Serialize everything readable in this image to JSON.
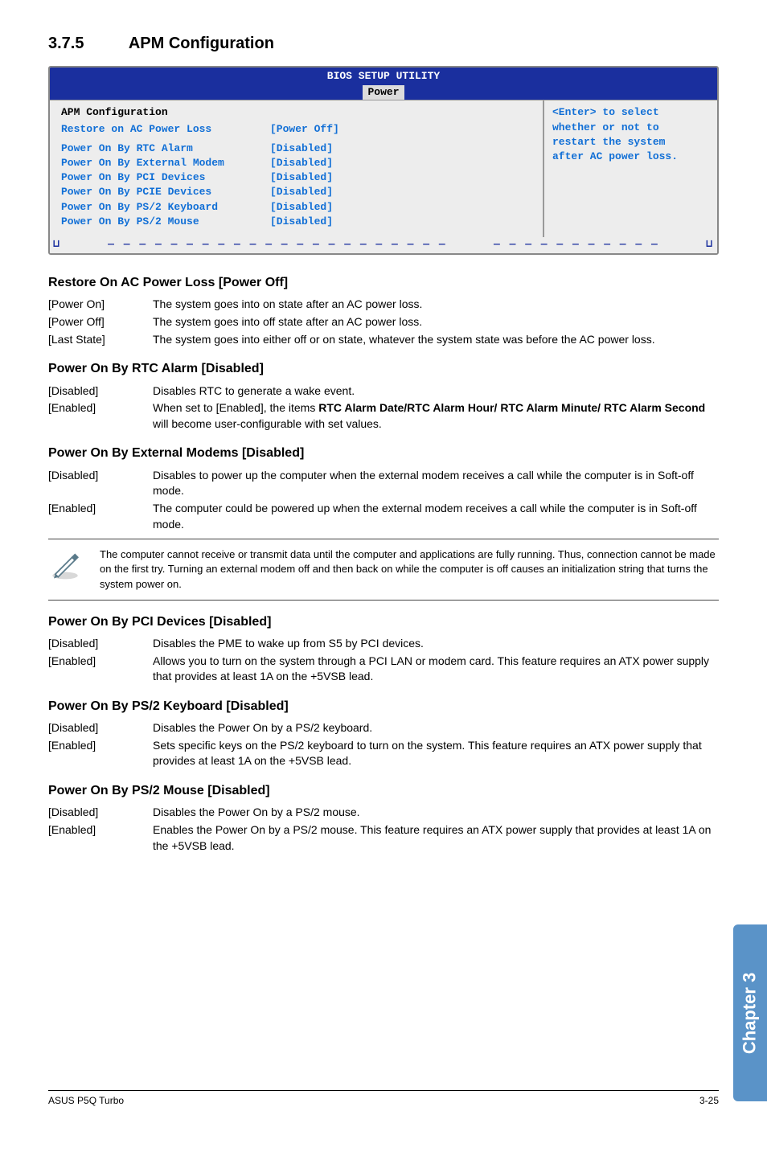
{
  "section": {
    "number": "3.7.5",
    "title": "APM Configuration"
  },
  "bios": {
    "header_line1": "BIOS SETUP UTILITY",
    "header_tab": "Power",
    "left_header": "APM Configuration",
    "rows": [
      {
        "label": "Restore on AC Power Loss",
        "value": "[Power Off]"
      },
      {
        "label": "Power On By RTC Alarm",
        "value": "[Disabled]"
      },
      {
        "label": "Power On By External Modem",
        "value": "[Disabled]"
      },
      {
        "label": "Power On By PCI Devices",
        "value": "[Disabled]"
      },
      {
        "label": "Power On By PCIE Devices",
        "value": "[Disabled]"
      },
      {
        "label": "Power On By PS/2 Keyboard",
        "value": "[Disabled]"
      },
      {
        "label": "Power On By PS/2 Mouse",
        "value": "[Disabled]"
      }
    ],
    "right_line1": "<Enter> to select",
    "right_line2": "whether or not to",
    "right_line3": "restart the system",
    "right_line4": "after AC power loss.",
    "colors": {
      "header_bg": "#1a2f9e",
      "header_fg": "#ffffff",
      "body_bg": "#ededed",
      "blue_text": "#116fd6"
    }
  },
  "blocks": [
    {
      "heading": "Restore On AC Power Loss [Power Off]",
      "opts": [
        {
          "k": "[Power On]",
          "v": "The system goes into on state after an AC power loss."
        },
        {
          "k": "[Power Off]",
          "v": "The system goes into off state after an AC power loss."
        },
        {
          "k": "[Last State]",
          "v": "The system goes into either off or on state, whatever the system state was before the AC power loss."
        }
      ]
    },
    {
      "heading": "Power On By RTC Alarm [Disabled]",
      "opts": [
        {
          "k": "[Disabled]",
          "v": "Disables RTC to generate a wake event."
        },
        {
          "k": "[Enabled]",
          "v": "When set to [Enabled], the items <b>RTC Alarm Date/RTC Alarm Hour/ RTC Alarm Minute/ RTC Alarm Second</b> will become user-configurable with set values.",
          "html": true
        }
      ]
    },
    {
      "heading": "Power On By External Modems [Disabled]",
      "opts": [
        {
          "k": "[Disabled]",
          "v": "Disables to power up the computer when the external modem receives a call while the computer is in Soft-off mode."
        },
        {
          "k": "[Enabled]",
          "v": "The computer could be powered up when the external modem receives a call while the computer is in Soft-off mode."
        }
      ]
    }
  ],
  "note": "The computer cannot receive or transmit data until the computer and applications are fully running. Thus, connection cannot be made on the first try. Turning an external modem off and then back on while the computer is off causes an initialization string that turns the system power on.",
  "blocks2": [
    {
      "heading": "Power On By PCI Devices [Disabled]",
      "opts": [
        {
          "k": "[Disabled]",
          "v": "Disables the PME to wake up from S5 by PCI devices."
        },
        {
          "k": "[Enabled]",
          "v": "Allows you to turn on the system through a PCI LAN or modem card. This feature requires an ATX power supply that provides at least 1A on the +5VSB lead."
        }
      ]
    },
    {
      "heading": "Power On By PS/2 Keyboard [Disabled]",
      "opts": [
        {
          "k": "[Disabled]",
          "v": "Disables the Power On by a PS/2 keyboard."
        },
        {
          "k": "[Enabled]",
          "v": "Sets specific keys on the PS/2 keyboard to turn on the system. This feature requires an ATX power supply that provides at least 1A on the +5VSB lead."
        }
      ]
    },
    {
      "heading": "Power On By PS/2 Mouse [Disabled]",
      "opts": [
        {
          "k": "[Disabled]",
          "v": "Disables the Power On by a PS/2 mouse."
        },
        {
          "k": "[Enabled]",
          "v": "Enables the Power On by a PS/2 mouse. This feature requires an ATX power supply that provides at least 1A on the +5VSB lead."
        }
      ]
    }
  ],
  "side_tab": "Chapter 3",
  "footer": {
    "left": "ASUS P5Q Turbo",
    "right": "3-25"
  }
}
